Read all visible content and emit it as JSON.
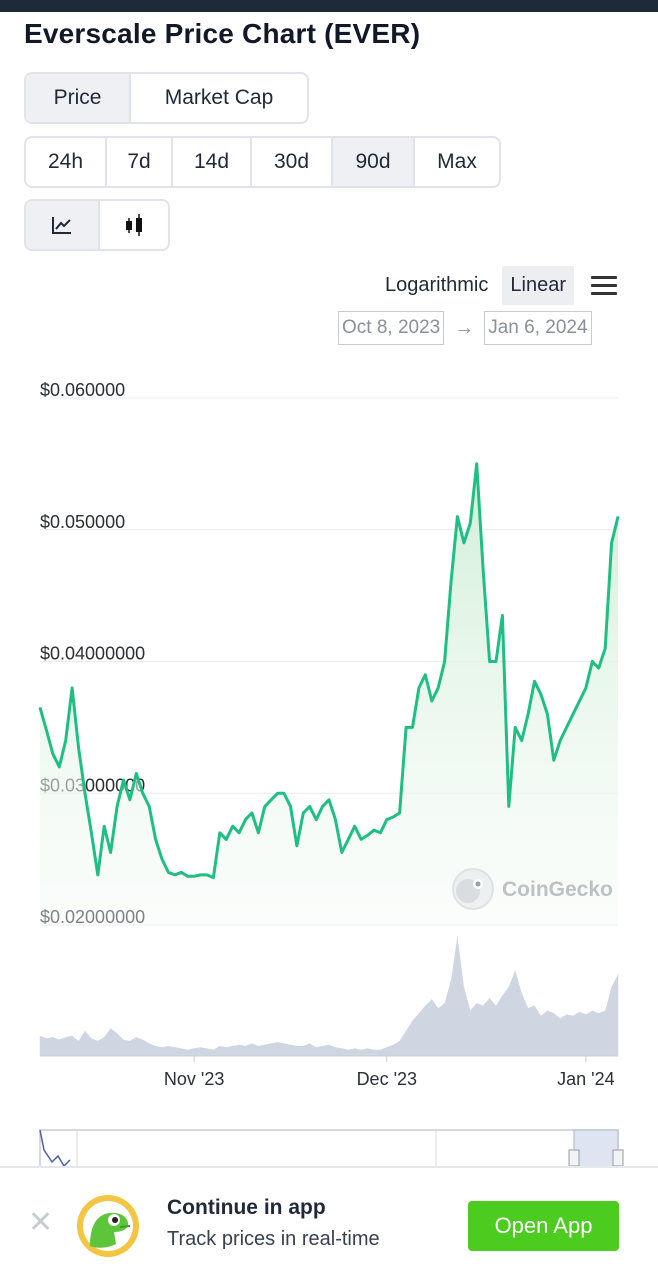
{
  "title": "Everscale Price Chart (EVER)",
  "metric_tabs": [
    {
      "label": "Price",
      "active": true
    },
    {
      "label": "Market Cap",
      "active": false
    }
  ],
  "range_tabs": [
    {
      "label": "24h",
      "active": false
    },
    {
      "label": "7d",
      "active": false
    },
    {
      "label": "14d",
      "active": false
    },
    {
      "label": "30d",
      "active": false
    },
    {
      "label": "90d",
      "active": true
    },
    {
      "label": "Max",
      "active": false
    }
  ],
  "chart_type_toggle": [
    {
      "icon": "line-chart-icon",
      "active": true
    },
    {
      "icon": "candlestick-icon",
      "active": false
    }
  ],
  "scale": {
    "logarithmic": "Logarithmic",
    "linear": "Linear",
    "active": "Linear"
  },
  "date_range": {
    "from": "Oct 8, 2023",
    "to": "Jan 6, 2024",
    "arrow": "→"
  },
  "watermark": "CoinGecko",
  "colors": {
    "line": "#1fbf83",
    "area": "#dff3e4",
    "volume": "#cfd6e2",
    "button": "#4bcc1e"
  },
  "chart_data": {
    "type": "line",
    "ylim": [
      0.02,
      0.06
    ],
    "y_ticks": [
      {
        "value": 0.06,
        "label": "$0.060000"
      },
      {
        "value": 0.05,
        "label": "$0.050000"
      },
      {
        "value": 0.04,
        "label": "$0.04000000"
      },
      {
        "value": 0.03,
        "label": "$0.03000000"
      },
      {
        "value": 0.02,
        "label": "$0.02000000"
      }
    ],
    "x_ticks": [
      {
        "date": "2023-11-01",
        "label": "Nov '23"
      },
      {
        "date": "2023-12-01",
        "label": "Dec '23"
      },
      {
        "date": "2024-01-01",
        "label": "Jan '24"
      }
    ],
    "grid": true,
    "series": [
      {
        "x": [
          "2023-10-08",
          "2023-10-09",
          "2023-10-10",
          "2023-10-11",
          "2023-10-12",
          "2023-10-13",
          "2023-10-14",
          "2023-10-15",
          "2023-10-16",
          "2023-10-17",
          "2023-10-18",
          "2023-10-19",
          "2023-10-20",
          "2023-10-21",
          "2023-10-22",
          "2023-10-23",
          "2023-10-24",
          "2023-10-25",
          "2023-10-26",
          "2023-10-27",
          "2023-10-28",
          "2023-10-29",
          "2023-10-30",
          "2023-10-31",
          "2023-11-01",
          "2023-11-02",
          "2023-11-03",
          "2023-11-04",
          "2023-11-05",
          "2023-11-06",
          "2023-11-07",
          "2023-11-08",
          "2023-11-09",
          "2023-11-10",
          "2023-11-11",
          "2023-11-12",
          "2023-11-13",
          "2023-11-14",
          "2023-11-15",
          "2023-11-16",
          "2023-11-17",
          "2023-11-18",
          "2023-11-19",
          "2023-11-20",
          "2023-11-21",
          "2023-11-22",
          "2023-11-23",
          "2023-11-24",
          "2023-11-25",
          "2023-11-26",
          "2023-11-27",
          "2023-11-28",
          "2023-11-29",
          "2023-11-30",
          "2023-12-01",
          "2023-12-02",
          "2023-12-03",
          "2023-12-04",
          "2023-12-05",
          "2023-12-06",
          "2023-12-07",
          "2023-12-08",
          "2023-12-09",
          "2023-12-10",
          "2023-12-11",
          "2023-12-12",
          "2023-12-13",
          "2023-12-14",
          "2023-12-15",
          "2023-12-16",
          "2023-12-17",
          "2023-12-18",
          "2023-12-19",
          "2023-12-20",
          "2023-12-21",
          "2023-12-22",
          "2023-12-23",
          "2023-12-24",
          "2023-12-25",
          "2023-12-26",
          "2023-12-27",
          "2023-12-28",
          "2023-12-29",
          "2023-12-30",
          "2023-12-31",
          "2024-01-01",
          "2024-01-02",
          "2024-01-03",
          "2024-01-04",
          "2024-01-05",
          "2024-01-06"
        ],
        "values": [
          0.0365,
          0.0348,
          0.033,
          0.032,
          0.034,
          0.038,
          0.0335,
          0.03,
          0.027,
          0.0238,
          0.0275,
          0.0255,
          0.029,
          0.031,
          0.0295,
          0.0315,
          0.03,
          0.029,
          0.0265,
          0.025,
          0.024,
          0.0238,
          0.024,
          0.0237,
          0.0237,
          0.0238,
          0.0238,
          0.0236,
          0.027,
          0.0265,
          0.0275,
          0.027,
          0.028,
          0.0285,
          0.027,
          0.029,
          0.0295,
          0.03,
          0.03,
          0.029,
          0.026,
          0.0285,
          0.029,
          0.028,
          0.029,
          0.0295,
          0.028,
          0.0255,
          0.0265,
          0.0275,
          0.0265,
          0.0268,
          0.0272,
          0.027,
          0.028,
          0.0282,
          0.0285,
          0.035,
          0.035,
          0.038,
          0.039,
          0.037,
          0.038,
          0.04,
          0.046,
          0.051,
          0.049,
          0.0505,
          0.055,
          0.047,
          0.04,
          0.04,
          0.0435,
          0.029,
          0.035,
          0.034,
          0.036,
          0.0385,
          0.0375,
          0.036,
          0.0325,
          0.034,
          0.035,
          0.036,
          0.037,
          0.038,
          0.04,
          0.0395,
          0.041,
          0.049,
          0.051
        ]
      }
    ],
    "volume": {
      "values": [
        0.16,
        0.14,
        0.15,
        0.13,
        0.15,
        0.16,
        0.12,
        0.2,
        0.14,
        0.12,
        0.15,
        0.22,
        0.18,
        0.13,
        0.12,
        0.15,
        0.13,
        0.1,
        0.08,
        0.07,
        0.08,
        0.07,
        0.06,
        0.05,
        0.06,
        0.07,
        0.06,
        0.05,
        0.08,
        0.07,
        0.08,
        0.09,
        0.08,
        0.1,
        0.08,
        0.09,
        0.1,
        0.11,
        0.1,
        0.09,
        0.08,
        0.08,
        0.1,
        0.07,
        0.08,
        0.09,
        0.07,
        0.06,
        0.05,
        0.06,
        0.05,
        0.06,
        0.05,
        0.05,
        0.07,
        0.09,
        0.12,
        0.2,
        0.28,
        0.34,
        0.4,
        0.45,
        0.38,
        0.42,
        0.6,
        0.95,
        0.55,
        0.36,
        0.42,
        0.4,
        0.46,
        0.4,
        0.48,
        0.55,
        0.68,
        0.5,
        0.38,
        0.4,
        0.32,
        0.36,
        0.34,
        0.3,
        0.33,
        0.32,
        0.35,
        0.33,
        0.36,
        0.34,
        0.36,
        0.55,
        0.65
      ]
    },
    "navigator": true
  },
  "banner": {
    "close": "✕",
    "title": "Continue in app",
    "subtitle": "Track prices in real-time",
    "button": "Open App"
  }
}
